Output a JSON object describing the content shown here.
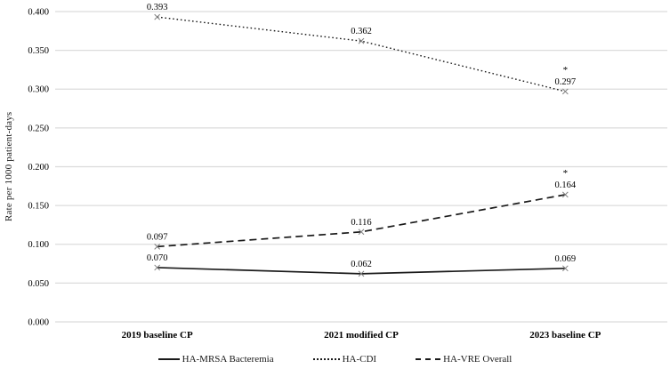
{
  "chart_data": {
    "type": "line",
    "title": "",
    "xlabel": "",
    "ylabel": "Rate per 1000 patient-days",
    "categories": [
      "2019 baseline CP",
      "2021 modified CP",
      "2023 baseline CP"
    ],
    "series": [
      {
        "name": "HA-MRSA Bacteremia",
        "line_style": "solid",
        "values": [
          0.07,
          0.062,
          0.069
        ],
        "point_labels": [
          "0.070",
          "0.062",
          "0.069"
        ],
        "significance": [
          "",
          "",
          ""
        ]
      },
      {
        "name": "HA-CDI",
        "line_style": "dotted",
        "values": [
          0.393,
          0.362,
          0.297
        ],
        "point_labels": [
          "0.393",
          "0.362",
          "0.297"
        ],
        "significance": [
          "",
          "",
          "*"
        ]
      },
      {
        "name": "HA-VRE Overall",
        "line_style": "dashed",
        "values": [
          0.097,
          0.116,
          0.164
        ],
        "point_labels": [
          "0.097",
          "0.116",
          "0.164"
        ],
        "significance": [
          "",
          "",
          "*"
        ]
      }
    ],
    "ylim": [
      0,
      0.4
    ],
    "yticks": [
      0.0,
      0.05,
      0.1,
      0.15,
      0.2,
      0.25,
      0.3,
      0.35,
      0.4
    ],
    "ytick_labels": [
      "0.000",
      "0.050",
      "0.100",
      "0.150",
      "0.200",
      "0.250",
      "0.300",
      "0.350",
      "0.400"
    ],
    "grid": true,
    "legend_position": "bottom",
    "marker": "x",
    "colors": {
      "line": "#1a1a1a",
      "marker": "#808080",
      "grid": "#dcdcdc",
      "text": "#000000",
      "background": "#ffffff"
    }
  }
}
